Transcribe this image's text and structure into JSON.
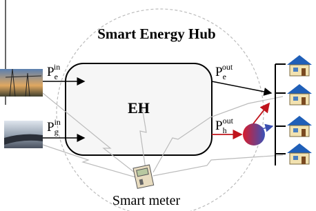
{
  "title": "Smart Energy Hub",
  "hub": {
    "label": "EH"
  },
  "inputs": [
    {
      "base": "P",
      "sub": "e",
      "sup": "in"
    },
    {
      "base": "P",
      "sub": "g",
      "sup": "in"
    }
  ],
  "outputs": [
    {
      "base": "P",
      "sub": "e",
      "sup": "out"
    },
    {
      "base": "P",
      "sub": "h",
      "sup": "out"
    }
  ],
  "meter": {
    "label": "Smart meter"
  }
}
